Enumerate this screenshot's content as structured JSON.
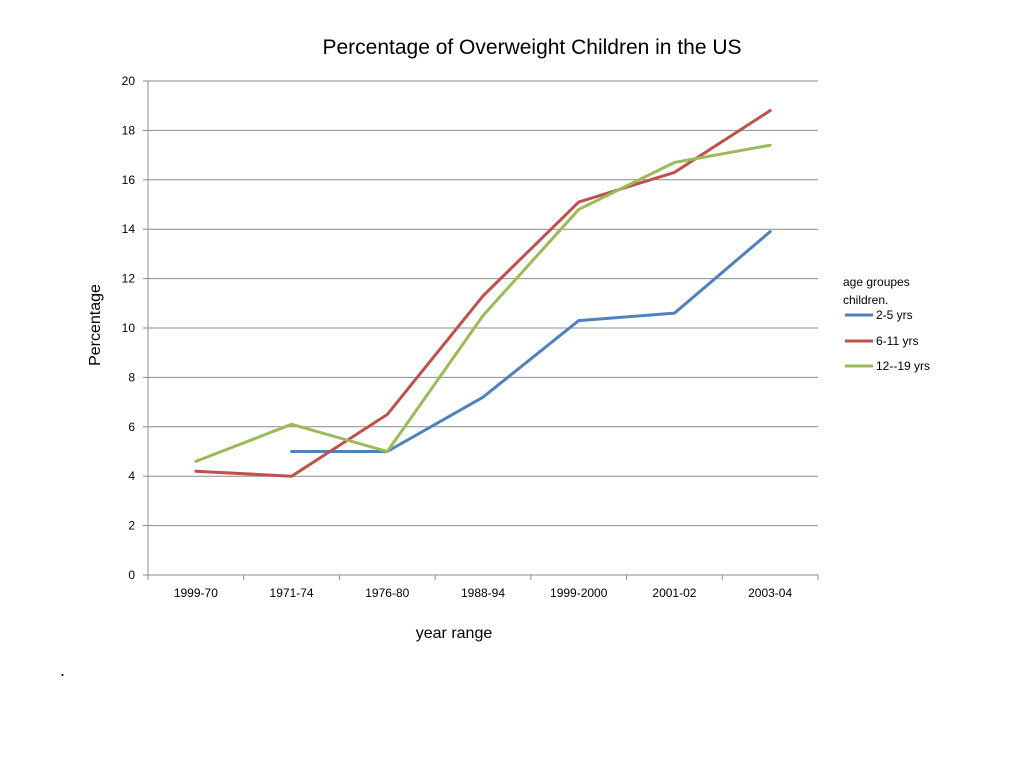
{
  "chart_data": {
    "type": "line",
    "title": "Percentage of Overweight Children in the US",
    "xlabel": "year range",
    "ylabel": "Percentage",
    "categories": [
      "1999-70",
      "1971-74",
      "1976-80",
      "1988-94",
      "1999-2000",
      "2001-02",
      "2003-04"
    ],
    "ylim": [
      0,
      20
    ],
    "yticks": [
      0,
      2,
      4,
      6,
      8,
      10,
      12,
      14,
      16,
      18,
      20
    ],
    "grid": true,
    "legend": {
      "title": "age groupes children.",
      "position": "right"
    },
    "series": [
      {
        "name": "2-5 yrs",
        "color": "#4f81bd",
        "values": [
          null,
          5.0,
          5.0,
          7.2,
          10.3,
          10.6,
          13.9
        ]
      },
      {
        "name": "6-11 yrs",
        "color": "#c0504d",
        "values": [
          4.2,
          4.0,
          6.5,
          11.3,
          15.1,
          16.3,
          18.8
        ]
      },
      {
        "name": "12--19 yrs",
        "color": "#9bbb59",
        "values": [
          4.6,
          6.1,
          5.0,
          10.5,
          14.8,
          16.7,
          17.4
        ]
      }
    ]
  },
  "footnote": "."
}
